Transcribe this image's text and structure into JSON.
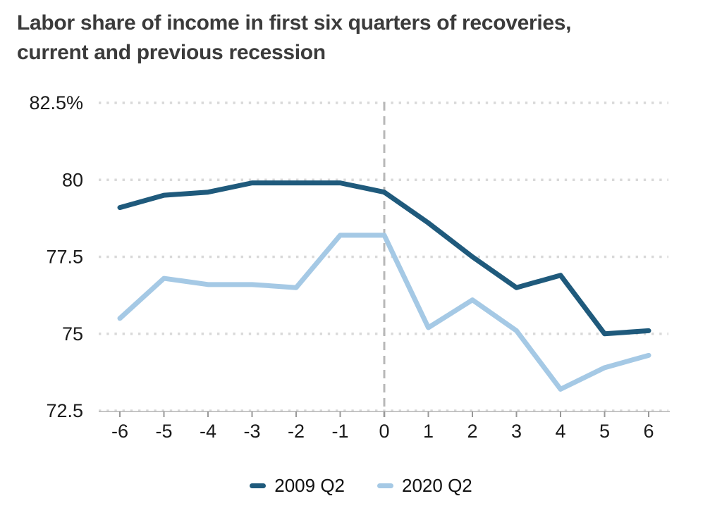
{
  "title_lines": [
    "Labor share of income in first six quarters of recoveries,",
    "current and previous recession"
  ],
  "chart_data": {
    "type": "line",
    "title": "Labor share of income in first six quarters of recoveries, current and previous recession",
    "xlabel": "",
    "ylabel": "",
    "x": [
      -6,
      -5,
      -4,
      -3,
      -2,
      -1,
      0,
      1,
      2,
      3,
      4,
      5,
      6
    ],
    "x_tick_labels": [
      "-6",
      "-5",
      "-4",
      "-3",
      "-2",
      "-1",
      "0",
      "1",
      "2",
      "3",
      "4",
      "5",
      "6"
    ],
    "ylim": [
      72.5,
      82.5
    ],
    "y_ticks": [
      {
        "value": 82.5,
        "label": "82.5%"
      },
      {
        "value": 80,
        "label": "80"
      },
      {
        "value": 77.5,
        "label": "77.5"
      },
      {
        "value": 75,
        "label": "75"
      },
      {
        "value": 72.5,
        "label": "72.5"
      }
    ],
    "series": [
      {
        "name": "2009 Q2",
        "color": "#1f5a7c",
        "values": [
          79.1,
          79.5,
          79.6,
          79.9,
          79.9,
          79.9,
          79.6,
          78.6,
          77.5,
          76.5,
          76.9,
          75.0,
          75.1
        ]
      },
      {
        "name": "2020 Q2",
        "color": "#a5c9e5",
        "values": [
          75.5,
          76.8,
          76.6,
          76.6,
          76.5,
          78.2,
          78.2,
          75.2,
          76.1,
          75.1,
          73.2,
          73.9,
          74.3
        ]
      }
    ],
    "reference_line_x": 0,
    "grid": "horizontal-dotted",
    "legend_position": "bottom"
  },
  "colors": {
    "title_text": "#3b3b3b",
    "tick_text": "#1a1a1a",
    "grid": "#d9d9d9",
    "axis_line": "#b3b3b3",
    "tick_mark": "#999999",
    "reference_line": "#b8b8b8"
  }
}
